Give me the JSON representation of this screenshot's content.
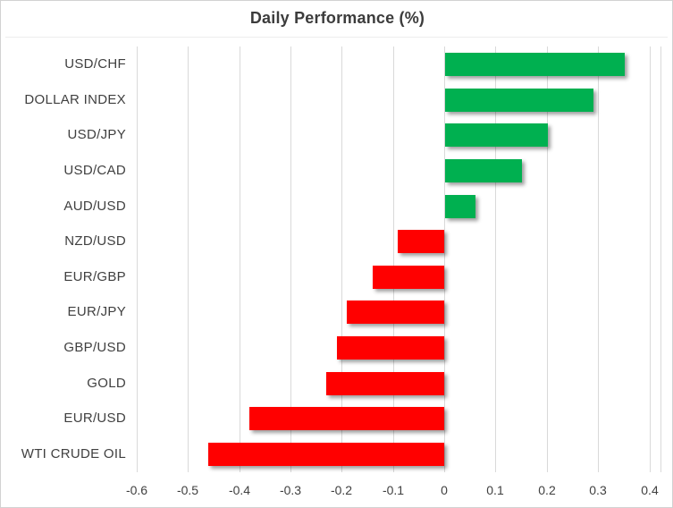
{
  "title": "Daily Performance (%)",
  "colors": {
    "positive": "#00B050",
    "negative": "#FF0000",
    "grid": "#D9D9D9",
    "text": "#404040",
    "title_text": "#3C3C3C"
  },
  "chart_data": {
    "type": "bar",
    "orientation": "horizontal",
    "title": "Daily Performance (%)",
    "categories": [
      "USD/CHF",
      "DOLLAR INDEX",
      "USD/JPY",
      "USD/CAD",
      "AUD/USD",
      "NZD/USD",
      "EUR/GBP",
      "EUR/JPY",
      "GBP/USD",
      "GOLD",
      "EUR/USD",
      "WTI CRUDE OIL"
    ],
    "values": [
      0.35,
      0.29,
      0.2,
      0.15,
      0.06,
      -0.09,
      -0.14,
      -0.19,
      -0.21,
      -0.23,
      -0.38,
      -0.46
    ],
    "xlabel": "",
    "ylabel": "",
    "xlim": [
      -0.6,
      0.42
    ],
    "x_ticks": [
      -0.6,
      -0.5,
      -0.4,
      -0.3,
      -0.2,
      -0.1,
      0,
      0.1,
      0.2,
      0.3,
      0.4
    ],
    "x_tick_labels": [
      "-0.6",
      "-0.5",
      "-0.4",
      "-0.3",
      "-0.2",
      "-0.1",
      "0",
      "0.1",
      "0.2",
      "0.3",
      "0.4"
    ],
    "grid": true,
    "legend": false,
    "positive_color": "#00B050",
    "negative_color": "#FF0000"
  }
}
